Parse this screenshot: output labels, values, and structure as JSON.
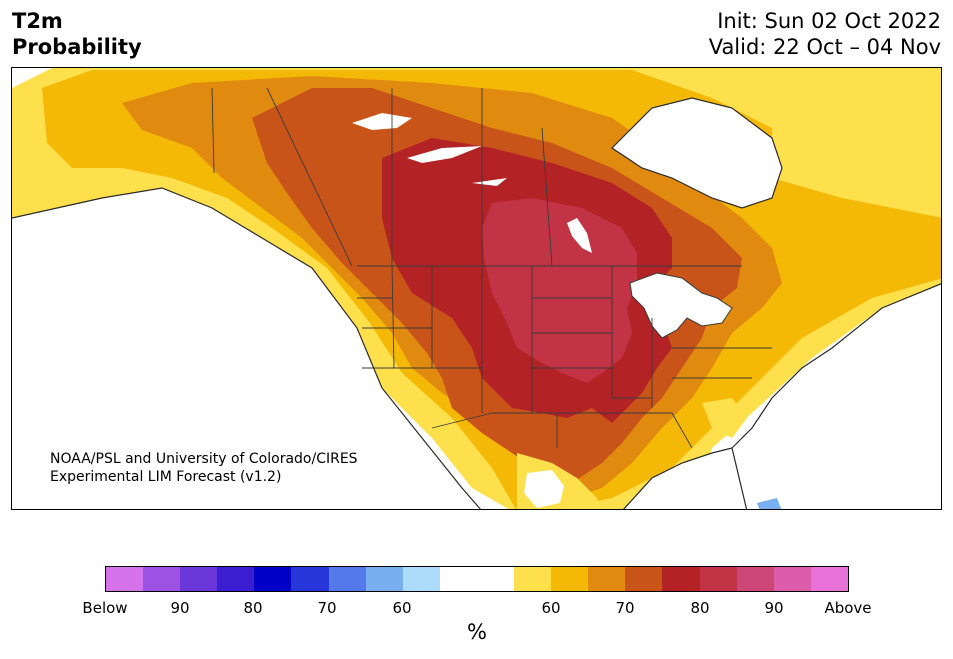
{
  "header": {
    "title_line1": "T2m",
    "title_line2": "Probability",
    "init": "Init: Sun 02 Oct 2022",
    "valid": "Valid: 22 Oct – 04 Nov"
  },
  "credit": {
    "line1": "NOAA/PSL and University of Colorado/CIRES",
    "line2": "Experimental LIM Forecast (v1.2)"
  },
  "legend": {
    "unit": "%",
    "colors": [
      "#d574ea",
      "#9d52e3",
      "#6b37d8",
      "#3a1ed0",
      "#0000c8",
      "#2636d9",
      "#5479e8",
      "#78aff1",
      "#acdcfa",
      "#ffffff",
      "#ffffff",
      "#fee04d",
      "#f4b807",
      "#e08b10",
      "#c95419",
      "#b32225",
      "#c23346",
      "#ce4877",
      "#dc5daa",
      "#e873d8"
    ],
    "tick_labels": [
      "Below",
      "90",
      "80",
      "70",
      "60",
      "60",
      "70",
      "80",
      "90",
      "Above"
    ]
  },
  "map_colors": {
    "p55": "#fee04d",
    "p60": "#f4b807",
    "p65": "#e08b10",
    "p70": "#c95419",
    "p75": "#b32225",
    "p80": "#c23346",
    "below60": "#acdcfa",
    "below70": "#78aff1",
    "border": "#3a3a3a"
  }
}
